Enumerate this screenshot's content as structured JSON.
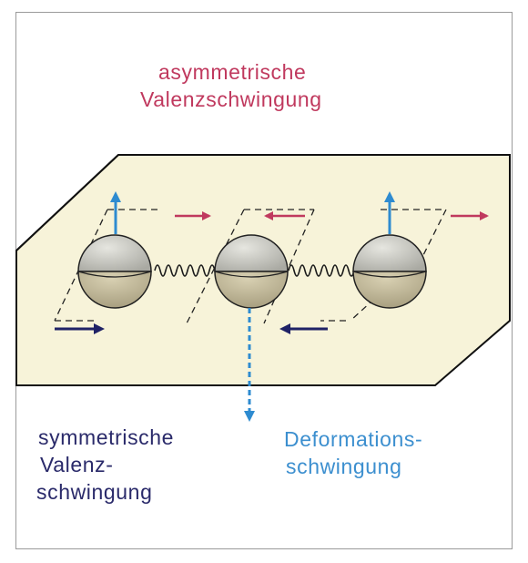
{
  "labels": {
    "asymmetric_line1": "asymmetrische",
    "asymmetric_line2": "Valenzschwingung",
    "symmetric_line1": "symmetrische",
    "symmetric_line2": "Valenz-",
    "symmetric_line3": "schwingung",
    "deformation_line1": "Deformations-",
    "deformation_line2": "schwingung"
  },
  "colors": {
    "asymmetric": "#c0395e",
    "symmetric": "#2a2a6a",
    "deformation": "#3c8fcf",
    "plane": "#f7f3d9",
    "atom_top": "#d8d8d2",
    "atom_bottom": "#cfc6a8"
  },
  "atoms": [
    "left-atom",
    "center-atom",
    "right-atom"
  ]
}
